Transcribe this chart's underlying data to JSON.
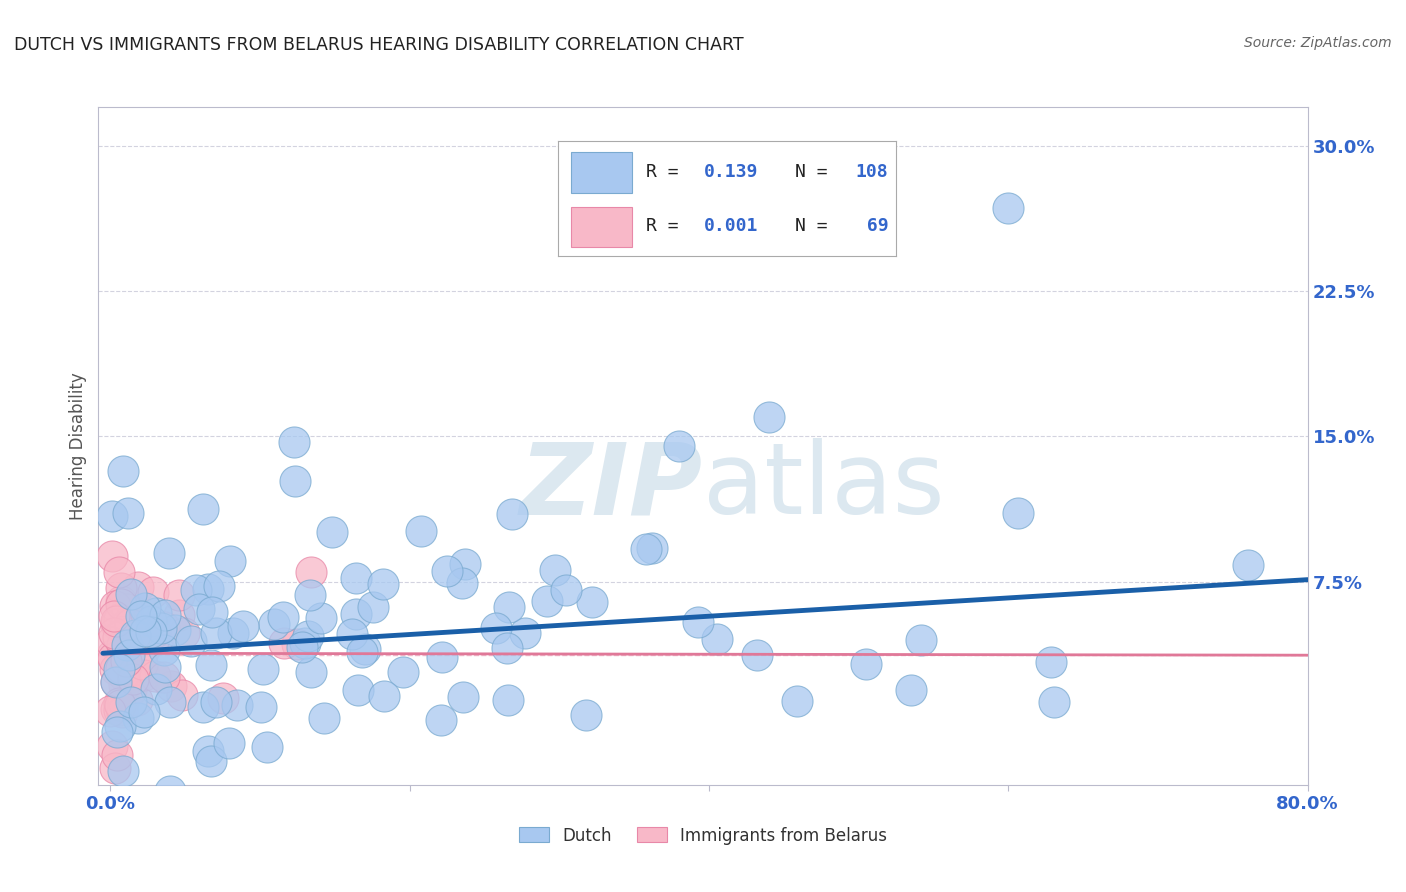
{
  "title": "DUTCH VS IMMIGRANTS FROM BELARUS HEARING DISABILITY CORRELATION CHART",
  "source": "Source: ZipAtlas.com",
  "ylabel": "Hearing Disability",
  "dutch_color": "#a8c8f0",
  "dutch_edge_color": "#7aaad0",
  "belarus_color": "#f8b8c8",
  "belarus_edge_color": "#e888a8",
  "trendline_dutch_color": "#1a5fa8",
  "trendline_belarus_color": "#e07898",
  "watermark_color": "#dce8f0",
  "legend_r_dutch": "0.139",
  "legend_n_dutch": "108",
  "legend_r_belarus": "0.001",
  "legend_n_belarus": "69",
  "grid_color": "#c8c8d8",
  "background_color": "#ffffff",
  "dutch_seed": 42,
  "belarus_seed": 7
}
